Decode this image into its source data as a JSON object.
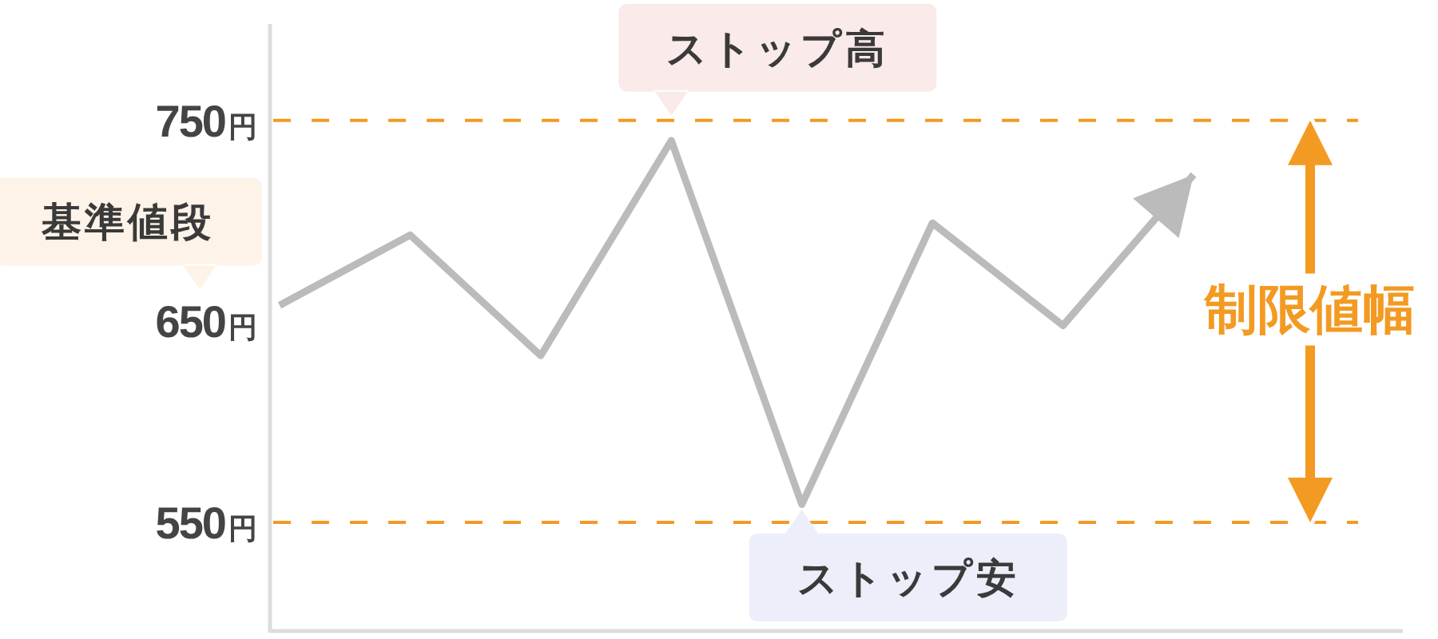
{
  "chart_data": {
    "type": "line",
    "categories": [
      null,
      null,
      null,
      null,
      null,
      null,
      null,
      null
    ],
    "series": [
      {
        "color": "#bbbbbb",
        "values": [
          658,
          693,
          633,
          740,
          559,
          699,
          648,
          723
        ]
      }
    ],
    "ylim": [
      496,
      798
    ],
    "yticks": [
      {
        "value": 550,
        "label": "550円"
      },
      {
        "value": 650,
        "label": "650円"
      },
      {
        "value": 750,
        "label": "750円"
      }
    ],
    "tick_labels": "y",
    "ref_lines": [
      {
        "axis": "y",
        "value": 750,
        "label": "ストップ高",
        "color": "#f39a23",
        "line_style": "dashed"
      },
      {
        "axis": "y",
        "value": 550,
        "label": "ストップ安",
        "color": "#f39a23",
        "line_style": "dashed"
      }
    ],
    "annotations": [
      "基準値段",
      "制限値幅"
    ]
  }
}
